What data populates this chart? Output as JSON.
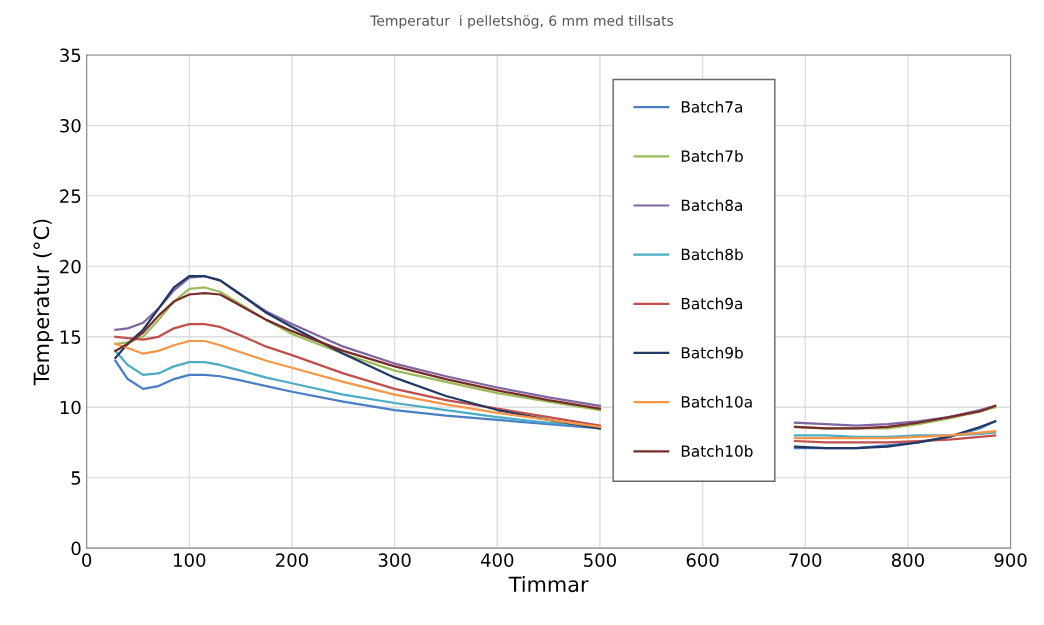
{
  "chart_data": {
    "type": "line",
    "title": "Temperatur  i pelletshög, 6 mm med tillsats",
    "xlabel": "Timmar",
    "ylabel": "Temperatur (°C)",
    "x": [
      28,
      40,
      55,
      70,
      85,
      100,
      115,
      130,
      150,
      175,
      200,
      250,
      300,
      350,
      400,
      450,
      500,
      590,
      690,
      720,
      750,
      780,
      810,
      840,
      870,
      885
    ],
    "series": [
      {
        "name": "Batch7a",
        "color": "#4a7ec4",
        "values": [
          13.3,
          12.0,
          11.3,
          11.5,
          12.0,
          12.3,
          12.3,
          12.2,
          11.9,
          11.5,
          11.1,
          10.4,
          9.8,
          9.4,
          9.1,
          8.8,
          8.5,
          null,
          7.1,
          7.1,
          7.1,
          7.3,
          7.5,
          7.9,
          8.5,
          9.0
        ]
      },
      {
        "name": "Batch7b",
        "color": "#9bbb59",
        "values": [
          14.5,
          14.6,
          15.0,
          16.2,
          17.5,
          18.4,
          18.5,
          18.2,
          17.3,
          16.2,
          15.2,
          13.8,
          12.6,
          11.8,
          11.0,
          10.4,
          9.8,
          null,
          8.6,
          8.5,
          8.5,
          8.5,
          8.8,
          9.2,
          9.7,
          10.0
        ]
      },
      {
        "name": "Batch8a",
        "color": "#8064a2",
        "values": [
          15.5,
          15.6,
          16.0,
          17.0,
          18.3,
          19.2,
          19.3,
          19.0,
          18.0,
          16.8,
          15.9,
          14.3,
          13.1,
          12.2,
          11.4,
          10.7,
          10.1,
          null,
          8.9,
          8.8,
          8.7,
          8.8,
          9.0,
          9.3,
          9.8,
          10.1
        ]
      },
      {
        "name": "Batch8b",
        "color": "#4bacc6",
        "values": [
          14.0,
          13.0,
          12.3,
          12.4,
          12.9,
          13.2,
          13.2,
          13.0,
          12.6,
          12.1,
          11.7,
          10.9,
          10.3,
          9.8,
          9.3,
          8.9,
          8.6,
          null,
          8.0,
          8.0,
          7.9,
          7.9,
          8.0,
          8.0,
          8.1,
          8.2
        ]
      },
      {
        "name": "Batch9a",
        "color": "#c0504d",
        "values": [
          15.0,
          14.9,
          14.8,
          15.0,
          15.6,
          15.9,
          15.9,
          15.7,
          15.1,
          14.3,
          13.7,
          12.4,
          11.3,
          10.5,
          9.9,
          9.3,
          8.7,
          null,
          7.6,
          7.5,
          7.5,
          7.5,
          7.6,
          7.7,
          7.9,
          8.0
        ]
      },
      {
        "name": "Batch9b",
        "color": "#1f3864",
        "values": [
          13.5,
          14.5,
          15.5,
          17.0,
          18.5,
          19.3,
          19.3,
          19.0,
          18.0,
          16.7,
          15.7,
          13.8,
          12.1,
          10.8,
          9.8,
          9.1,
          8.5,
          null,
          7.2,
          7.1,
          7.1,
          7.2,
          7.5,
          7.9,
          8.6,
          9.0
        ]
      },
      {
        "name": "Batch10a",
        "color": "#f79646",
        "values": [
          14.5,
          14.2,
          13.8,
          14.0,
          14.4,
          14.7,
          14.7,
          14.4,
          13.9,
          13.3,
          12.8,
          11.8,
          10.9,
          10.2,
          9.6,
          9.1,
          8.6,
          null,
          7.8,
          7.8,
          7.8,
          7.8,
          7.9,
          8.0,
          8.2,
          8.3
        ]
      },
      {
        "name": "Batch10b",
        "color": "#772c2a",
        "values": [
          14.0,
          14.5,
          15.3,
          16.5,
          17.5,
          18.0,
          18.1,
          18.0,
          17.2,
          16.2,
          15.4,
          14.0,
          12.9,
          12.0,
          11.2,
          10.5,
          9.9,
          null,
          8.6,
          8.5,
          8.5,
          8.6,
          8.9,
          9.3,
          9.7,
          10.1
        ]
      }
    ],
    "xlim": [
      0,
      900
    ],
    "xticks": [
      0,
      100,
      200,
      300,
      400,
      500,
      600,
      700,
      800,
      900
    ],
    "ylim": [
      0,
      35
    ],
    "yticks": [
      0,
      5,
      10,
      15,
      20,
      25,
      30,
      35
    ],
    "grid": true,
    "legend": "top right",
    "marker": "none",
    "line_style": "solid"
  }
}
